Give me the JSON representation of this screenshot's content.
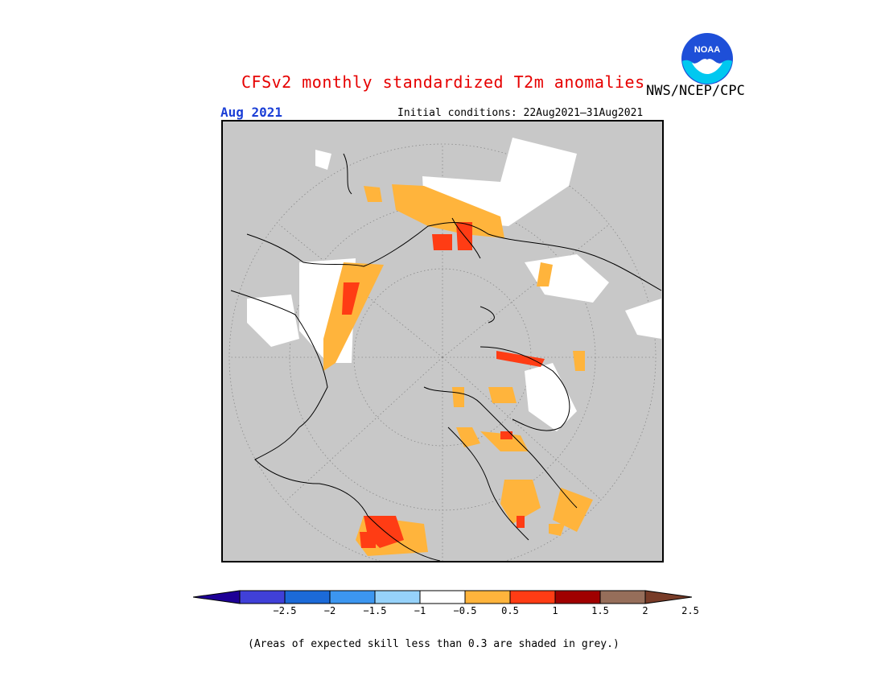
{
  "header": {
    "title": "CFSv2 monthly standardized T2m anomalies",
    "agency": "NWS/NCEP/CPC",
    "logo_text": "NOAA",
    "month": "Aug 2021",
    "initial_conditions": "Initial conditions: 22Aug2021–31Aug2021"
  },
  "map": {
    "projection": "north polar stereographic",
    "masked_color": "#c8c8c8"
  },
  "colorbar": {
    "labels": [
      "−2.5",
      "−2",
      "−1.5",
      "−1",
      "−0.5",
      "0.5",
      "1",
      "1.5",
      "2",
      "2.5"
    ],
    "colors": [
      "#1e0096",
      "#4040d8",
      "#1c6ad8",
      "#3c96f0",
      "#96d2fa",
      "#ffffff",
      "#ffb43c",
      "#ff3c14",
      "#a00000",
      "#966e5a",
      "#783c28"
    ]
  },
  "footnote": "(Areas of expected skill less than 0.3 are shaded in grey.)"
}
